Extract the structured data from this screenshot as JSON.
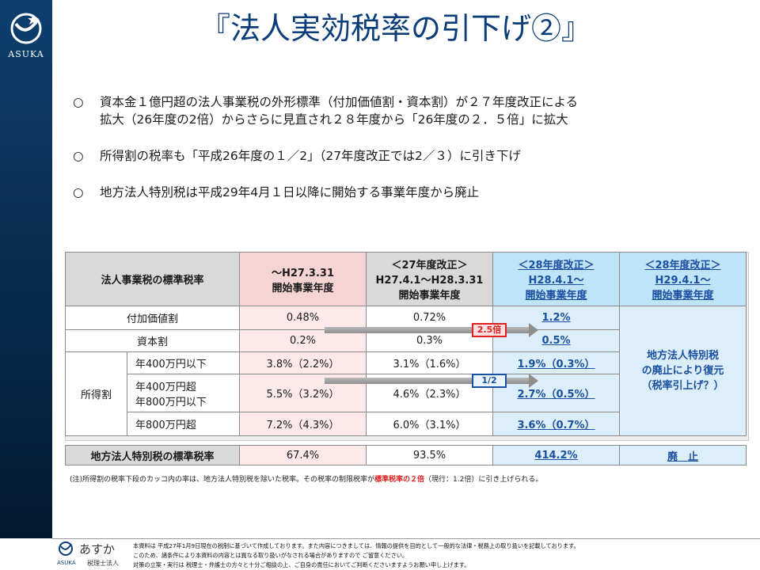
{
  "sidebar": {
    "logo_text": "ASUKA"
  },
  "title": "『法人実効税率の引下げ②』",
  "bullets": [
    {
      "mark": "○",
      "lines": [
        "資本金１億円超の法人事業税の外形標準（付加価値割・資本割）が２７年度改正による",
        "拡大（26年度の2倍）からさらに見直され２８年度から「26年度の２．５倍」に拡大"
      ]
    },
    {
      "mark": "○",
      "lines": [
        "所得割の税率も「平成26年度の１／2」（27年度改正では2／３）に引き下げ"
      ]
    },
    {
      "mark": "○",
      "lines": [
        "地方法人特別税は平成29年4月１日以降に開始する事業年度から廃止"
      ]
    }
  ],
  "table": {
    "headers": {
      "col0": "法人事業税の標準税率",
      "col1": [
        "～H27.3.31",
        "開始事業年度"
      ],
      "col2": [
        "＜27年度改正＞",
        "H27.4.1～H28.3.31",
        "開始事業年度"
      ],
      "col3": [
        "＜28年度改正＞",
        "H28.4.1～",
        "開始事業年度"
      ],
      "col4": [
        "＜28年度改正＞",
        "H29.4.1～",
        "開始事業年度"
      ]
    },
    "rows": [
      {
        "label": "付加価値割",
        "v1": "0.48%",
        "v2": "0.72%",
        "v3": "1.2%"
      },
      {
        "label": "資本割",
        "v1": "0.2%",
        "v2": "0.3%",
        "v3": "0.5%"
      }
    ],
    "income_label": "所得割",
    "income_rows": [
      {
        "sub": [
          "年400万円以下"
        ],
        "v1": "3.8%（2.2%）",
        "v2": "3.1%（1.6%）",
        "v3": "1.9%（0.3%）"
      },
      {
        "sub": [
          "年400万円超",
          "年800万円以下"
        ],
        "v1": "5.5%（3.2%）",
        "v2": "4.6%（2.3%）",
        "v3": "2.7%（0.5%）"
      },
      {
        "sub": [
          "年800万円超"
        ],
        "v1": "7.2%（4.3%）",
        "v2": "6.0%（3.1%）",
        "v3": "3.6%（0.7%）"
      }
    ],
    "abolish_note": [
      "地方法人特別税",
      "の廃止により復元",
      "（税率引上げ？）"
    ],
    "arrow_labels": {
      "red": "2.5倍",
      "blue": "1/2"
    },
    "bottom": {
      "label": "地方法人特別税の標準税率",
      "v1": "67.4%",
      "v2": "93.5%",
      "v3": "414.2%",
      "v4": "廃　止"
    }
  },
  "note": {
    "pre": "(注)所得割の税率下段のカッコ内の率は、地方法人特別税を除いた税率。その税率の制限税率が",
    "red": "標準税率の２倍",
    "post": "（現行：1.2倍）に引き上げられる。"
  },
  "footer": {
    "logo_script": "あすか",
    "logo_sub1": "ASUKA",
    "logo_sub2": "税理士法人",
    "disclaimer": [
      "本資料は 平成27年1月9日現在の税制に基づいて作成しております。また内容につきましては、情報の提供を目的として一般的な法律・税務上の取り扱いを記載しております。",
      "このため、諸条件により本資料の内容とは異なる取り扱いがなされる場合がありますので ご留意ください。",
      "対策の立案・実行は 税理士・弁護士の方々と十分ご相談の上、ご自身の責任においてご判断くださいますようお願い申し上げます。"
    ]
  },
  "colors": {
    "sidebar": "#0d3f6e",
    "title": "#0b3d7a",
    "accent_blue": "#1b4fa0",
    "accent_red": "#e02020",
    "pink": "#fde9e9",
    "blue": "#dbeefa"
  }
}
